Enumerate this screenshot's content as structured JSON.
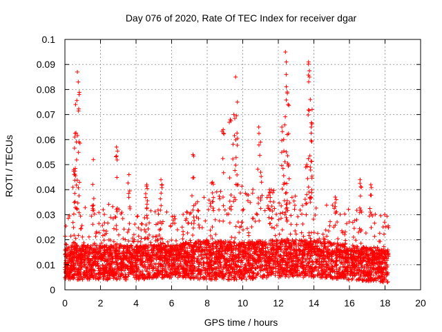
{
  "chart_data": {
    "type": "scatter",
    "title": "Day 076 of 2020, Rate Of TEC Index for receiver dgar",
    "xlabel": "GPS time / hours",
    "ylabel": "ROTI / TECUs",
    "xlim": [
      0,
      20
    ],
    "ylim": [
      0,
      0.1
    ],
    "x_ticks": [
      "0",
      "2",
      "4",
      "6",
      "8",
      "10",
      "12",
      "14",
      "16",
      "18",
      "20"
    ],
    "y_ticks": [
      "0",
      "0.01",
      "0.02",
      "0.03",
      "0.04",
      "0.05",
      "0.06",
      "0.07",
      "0.08",
      "0.09",
      "0.1"
    ],
    "grid": true,
    "marker": "+",
    "color": "#ff0000",
    "data_range_x": [
      0,
      18.2
    ],
    "peaks": [
      {
        "x": 0.6,
        "y": 0.074
      },
      {
        "x": 0.7,
        "y": 0.087
      },
      {
        "x": 0.75,
        "y": 0.083
      },
      {
        "x": 0.8,
        "y": 0.078
      },
      {
        "x": 0.55,
        "y": 0.061
      },
      {
        "x": 0.5,
        "y": 0.048
      },
      {
        "x": 1.6,
        "y": 0.052
      },
      {
        "x": 2.9,
        "y": 0.057
      },
      {
        "x": 3.6,
        "y": 0.046
      },
      {
        "x": 4.6,
        "y": 0.042
      },
      {
        "x": 5.4,
        "y": 0.044
      },
      {
        "x": 7.2,
        "y": 0.054
      },
      {
        "x": 8.3,
        "y": 0.043
      },
      {
        "x": 8.9,
        "y": 0.064
      },
      {
        "x": 9.3,
        "y": 0.068
      },
      {
        "x": 9.6,
        "y": 0.085
      },
      {
        "x": 9.7,
        "y": 0.075
      },
      {
        "x": 9.5,
        "y": 0.07
      },
      {
        "x": 10.9,
        "y": 0.065
      },
      {
        "x": 11.0,
        "y": 0.059
      },
      {
        "x": 12.2,
        "y": 0.065
      },
      {
        "x": 12.4,
        "y": 0.095
      },
      {
        "x": 12.45,
        "y": 0.091
      },
      {
        "x": 12.5,
        "y": 0.079
      },
      {
        "x": 12.55,
        "y": 0.074
      },
      {
        "x": 12.3,
        "y": 0.06
      },
      {
        "x": 13.7,
        "y": 0.091
      },
      {
        "x": 13.75,
        "y": 0.085
      },
      {
        "x": 13.8,
        "y": 0.076
      },
      {
        "x": 13.9,
        "y": 0.072
      },
      {
        "x": 13.85,
        "y": 0.065
      },
      {
        "x": 13.6,
        "y": 0.05
      },
      {
        "x": 16.6,
        "y": 0.044
      },
      {
        "x": 17.2,
        "y": 0.042
      },
      {
        "x": 15.2,
        "y": 0.037
      },
      {
        "x": 11.5,
        "y": 0.04
      }
    ],
    "band_envelope": [
      {
        "x": 0,
        "y_low": 0.004,
        "y_mid": 0.012,
        "y_high": 0.03
      },
      {
        "x": 2,
        "y_low": 0.004,
        "y_mid": 0.012,
        "y_high": 0.035
      },
      {
        "x": 4,
        "y_low": 0.004,
        "y_mid": 0.012,
        "y_high": 0.033
      },
      {
        "x": 6,
        "y_low": 0.005,
        "y_mid": 0.012,
        "y_high": 0.032
      },
      {
        "x": 8,
        "y_low": 0.004,
        "y_mid": 0.014,
        "y_high": 0.04
      },
      {
        "x": 10,
        "y_low": 0.004,
        "y_mid": 0.013,
        "y_high": 0.042
      },
      {
        "x": 12,
        "y_low": 0.005,
        "y_mid": 0.014,
        "y_high": 0.04
      },
      {
        "x": 14,
        "y_low": 0.005,
        "y_mid": 0.014,
        "y_high": 0.035
      },
      {
        "x": 16,
        "y_low": 0.004,
        "y_mid": 0.012,
        "y_high": 0.033
      },
      {
        "x": 18,
        "y_low": 0.003,
        "y_mid": 0.01,
        "y_high": 0.031
      }
    ]
  }
}
